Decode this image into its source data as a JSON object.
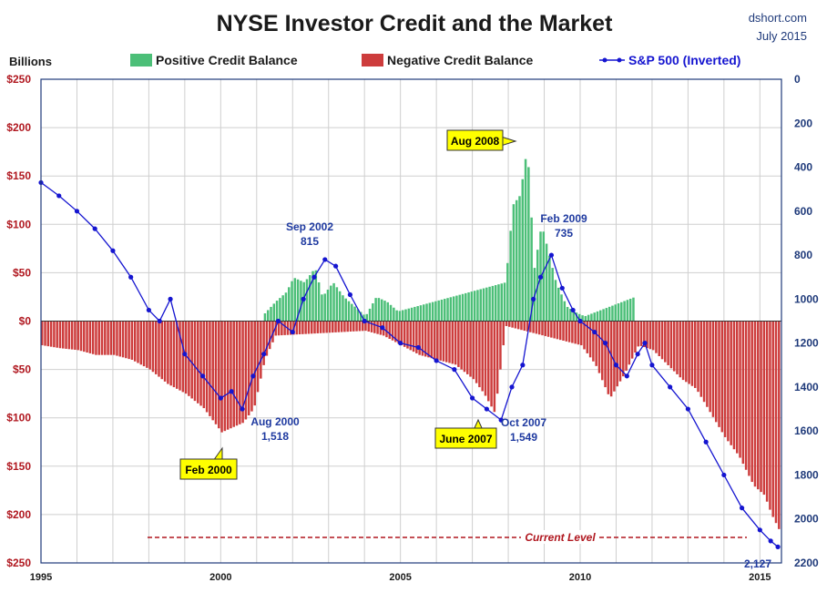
{
  "chart_data": {
    "type": "bar",
    "title": "NYSE Investor Credit and the Market",
    "source": "dshort.com",
    "date": "July 2015",
    "left_axis_label": "Billions",
    "x_range": [
      1995,
      2015.6
    ],
    "y_left_range": [
      -250,
      250
    ],
    "y_right_range": [
      0,
      2200
    ],
    "y_right_inverted": true,
    "grid": true,
    "legend_position": "top",
    "x_ticks": [
      "1995",
      "2000",
      "2005",
      "2010",
      "2015"
    ],
    "y_left_ticks": [
      "$250",
      "$200",
      "$150",
      "$100",
      "$50",
      "$0",
      "$50",
      "$100",
      "$150",
      "$200",
      "$250"
    ],
    "y_right_ticks": [
      "0",
      "200",
      "400",
      "600",
      "800",
      "1000",
      "1200",
      "1400",
      "1600",
      "1800",
      "2000",
      "2200"
    ],
    "legend": {
      "positive": "Positive Credit Balance",
      "negative": "Negative Credit Balance",
      "spx": "S&P 500 (Inverted)"
    },
    "colors": {
      "positive": "#4cbf78",
      "negative": "#cd3c3c",
      "spx": "#1515d0",
      "frame": "#1f3a7a",
      "current_line": "#b0171f",
      "callout_fill": "#ffff00"
    },
    "series": [
      {
        "name": "Positive Credit Balance",
        "x": [
          2001.2,
          2001.5,
          2001.8,
          2002.0,
          2002.3,
          2002.6,
          2002.8,
          2003.1,
          2003.4,
          2003.7,
          2004.0,
          2004.3,
          2004.6,
          2004.9,
          2007.9,
          2008.1,
          2008.3,
          2008.5,
          2008.7,
          2008.9,
          2009.1,
          2009.3,
          2009.6,
          2009.9,
          2010.1,
          2011.5
        ],
        "values": [
          8,
          20,
          30,
          45,
          40,
          55,
          25,
          40,
          25,
          15,
          5,
          25,
          20,
          10,
          40,
          120,
          130,
          180,
          55,
          100,
          70,
          40,
          15,
          8,
          5,
          25
        ]
      },
      {
        "name": "Negative Credit Balance",
        "x": [
          1995.0,
          1995.5,
          1996.0,
          1996.5,
          1997.0,
          1997.5,
          1998.0,
          1998.5,
          1999.0,
          1999.5,
          2000.0,
          2000.3,
          2000.6,
          2000.9,
          2001.2,
          2001.5,
          2004.0,
          2004.5,
          2005.0,
          2005.5,
          2006.0,
          2006.5,
          2007.0,
          2007.3,
          2007.6,
          2007.9,
          2010.0,
          2010.4,
          2010.8,
          2011.2,
          2011.6,
          2012.0,
          2012.4,
          2012.8,
          2013.2,
          2013.6,
          2014.0,
          2014.4,
          2014.8,
          2015.1,
          2015.3,
          2015.5
        ],
        "values": [
          -25,
          -28,
          -30,
          -35,
          -35,
          -40,
          -50,
          -65,
          -75,
          -90,
          -115,
          -110,
          -105,
          -90,
          -40,
          -15,
          -10,
          -15,
          -25,
          -35,
          -40,
          -45,
          -60,
          -75,
          -95,
          -5,
          -25,
          -45,
          -80,
          -55,
          -25,
          -30,
          -45,
          -60,
          -70,
          -95,
          -120,
          -140,
          -170,
          -180,
          -200,
          -215
        ]
      },
      {
        "name": "S&P 500 (Inverted)",
        "x": [
          1995.0,
          1995.5,
          1996.0,
          1996.5,
          1997.0,
          1997.5,
          1998.0,
          1998.3,
          1998.6,
          1999.0,
          1999.5,
          2000.0,
          2000.3,
          2000.6,
          2000.9,
          2001.2,
          2001.6,
          2002.0,
          2002.3,
          2002.6,
          2002.9,
          2003.2,
          2003.6,
          2004.0,
          2004.5,
          2005.0,
          2005.5,
          2006.0,
          2006.5,
          2007.0,
          2007.4,
          2007.8,
          2008.1,
          2008.4,
          2008.7,
          2008.9,
          2009.2,
          2009.5,
          2009.8,
          2010.0,
          2010.4,
          2010.7,
          2011.0,
          2011.3,
          2011.6,
          2011.8,
          2012.0,
          2012.5,
          2013.0,
          2013.5,
          2014.0,
          2014.5,
          2015.0,
          2015.3,
          2015.5
        ],
        "values": [
          470,
          530,
          600,
          680,
          780,
          900,
          1050,
          1100,
          1000,
          1250,
          1350,
          1450,
          1420,
          1500,
          1350,
          1250,
          1100,
          1150,
          1000,
          900,
          820,
          850,
          980,
          1100,
          1130,
          1200,
          1220,
          1280,
          1320,
          1450,
          1500,
          1550,
          1400,
          1300,
          1000,
          900,
          800,
          950,
          1050,
          1100,
          1150,
          1200,
          1300,
          1350,
          1250,
          1200,
          1300,
          1400,
          1500,
          1650,
          1800,
          1950,
          2050,
          2100,
          2127
        ]
      }
    ],
    "annotations": {
      "sep2002": {
        "label": "Sep 2002",
        "value": "815"
      },
      "feb2009": {
        "label": "Feb 2009",
        "value": "735"
      },
      "aug2000": {
        "label": "Aug 2000",
        "value": "1,518"
      },
      "oct2007": {
        "label": "Oct 2007",
        "value": "1,549"
      },
      "aug2008_box": "Aug 2008",
      "feb2000_box": "Feb 2000",
      "june2007_box": "June 2007",
      "current_level": "Current Level",
      "last_value": "2,127"
    }
  }
}
